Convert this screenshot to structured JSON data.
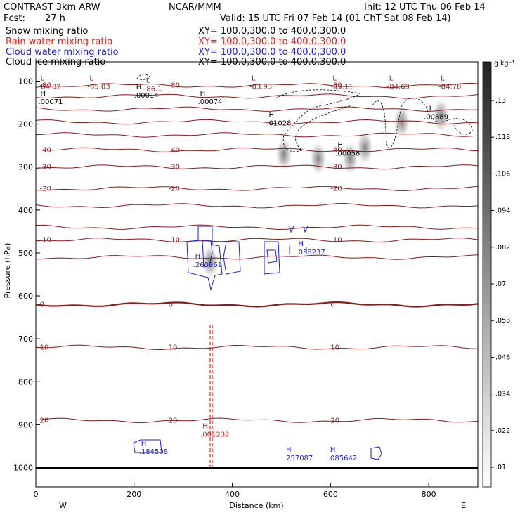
{
  "header": {
    "model": "CONTRAST  3km ARW",
    "center": "NCAR/MMM",
    "init": "Init: 12 UTC Thu 06 Feb 14",
    "fcst_label": "Fcst:",
    "fcst_value": "27 h",
    "valid": "Valid: 15 UTC Fri 07 Feb 14 (01 ChT Sat 08 Feb 14)"
  },
  "fields": [
    {
      "name": "Snow mixing ratio",
      "xy": "XY= 100.0,300.0 to 400.0,300.0",
      "color": "#000000"
    },
    {
      "name": "Rain water mixing ratio",
      "xy": "XY= 100.0,300.0 to 400.0,300.0",
      "color": "#e0201c"
    },
    {
      "name": "Cloud water mixing ratio",
      "xy": "XY= 100.0,300.0 to 400.0,300.0",
      "color": "#1e1ee0"
    },
    {
      "name": "Cloud ice mixing ratio",
      "xy": "XY= 100.0,300.0 to 400.0,300.0",
      "color": "#000000"
    }
  ],
  "colors": {
    "temperature": "#8b1a1a",
    "rain": "#e0201c",
    "cloud_water": "#1e1ee0",
    "cloud_ice": "#000000"
  },
  "colorbar": {
    "unit": "g kg⁻¹",
    "labels": [
      ".13",
      ".118",
      ".106",
      ".094",
      ".082",
      ".07",
      ".058",
      ".046",
      ".034",
      ".022",
      ".01"
    ]
  },
  "chart_data": {
    "type": "contour-cross-section",
    "xlabel": "Distance (km)",
    "ylabel": "Pressure (hPa)",
    "x_ticks": [
      "0",
      "200",
      "400",
      "600",
      "800"
    ],
    "y_ticks": [
      "100",
      "200",
      "300",
      "400",
      "500",
      "600",
      "700",
      "800",
      "900",
      "1000"
    ],
    "xlim": [
      0,
      900
    ],
    "ylim": [
      1045,
      55
    ],
    "x_left_label": "W",
    "x_right_label": "E",
    "isotherms": [
      {
        "p": 620,
        "label": "0"
      },
      {
        "p": 510,
        "label": ""
      },
      {
        "p": 470,
        "label": "-10"
      },
      {
        "p": 720,
        "label": "10"
      },
      {
        "p": 890,
        "label": "20"
      },
      {
        "p": 440,
        "label": ""
      },
      {
        "p": 390,
        "label": ""
      },
      {
        "p": 350,
        "label": "-20"
      },
      {
        "p": 300,
        "label": "-30"
      },
      {
        "p": 260,
        "label": "-40"
      },
      {
        "p": 225,
        "label": ""
      },
      {
        "p": 195,
        "label": ""
      },
      {
        "p": 165,
        "label": ""
      },
      {
        "p": 135,
        "label": ""
      },
      {
        "p": 110,
        "label": "-80"
      }
    ],
    "extrema_labels": [
      {
        "type": "L",
        "value": "-84.82",
        "x": 5,
        "p": 105,
        "color": "#8b1a1a"
      },
      {
        "type": "L",
        "value": "-85.03",
        "x": 105,
        "p": 105,
        "color": "#8b1a1a"
      },
      {
        "type": "L",
        "value": "-86.1",
        "x": 220,
        "p": 110,
        "color": "#8b1a1a"
      },
      {
        "type": "L",
        "value": "-83.93",
        "x": 435,
        "p": 105,
        "color": "#8b1a1a"
      },
      {
        "type": "L",
        "value": "-85.11",
        "x": 600,
        "p": 105,
        "color": "#8b1a1a"
      },
      {
        "type": "L",
        "value": "-84.69",
        "x": 715,
        "p": 105,
        "color": "#8b1a1a"
      },
      {
        "type": "L",
        "value": "-84.78",
        "x": 820,
        "p": 105,
        "color": "#8b1a1a"
      },
      {
        "type": "H",
        "value": ".00071",
        "x": 5,
        "p": 140,
        "color": "#000000"
      },
      {
        "type": "H",
        "value": ".00014",
        "x": 200,
        "p": 125,
        "color": "#000000"
      },
      {
        "type": "H",
        "value": ".00074",
        "x": 330,
        "p": 140,
        "color": "#000000"
      },
      {
        "type": "H",
        "value": ".01028",
        "x": 470,
        "p": 190,
        "color": "#000000"
      },
      {
        "type": "H",
        "value": ".00058",
        "x": 610,
        "p": 260,
        "color": "#000000"
      },
      {
        "type": "H",
        "value": ".00889",
        "x": 790,
        "p": 175,
        "color": "#000000"
      },
      {
        "type": "H",
        "value": ".260961",
        "x": 320,
        "p": 520,
        "color": "#1e1ee0"
      },
      {
        "type": "H",
        "value": ".058237",
        "x": 530,
        "p": 490,
        "color": "#1e1ee0"
      },
      {
        "type": "H",
        "value": ".184508",
        "x": 210,
        "p": 955,
        "color": "#1e1ee0"
      },
      {
        "type": "H",
        "value": ".257087",
        "x": 505,
        "p": 970,
        "color": "#1e1ee0"
      },
      {
        "type": "H",
        "value": ".085642",
        "x": 595,
        "p": 970,
        "color": "#1e1ee0"
      },
      {
        "type": "H",
        "value": ".001232",
        "x": 335,
        "p": 915,
        "color": "#e0201c"
      }
    ],
    "snow_blobs": [
      {
        "x": 505,
        "p": 270
      },
      {
        "x": 575,
        "p": 280
      },
      {
        "x": 670,
        "p": 255
      },
      {
        "x": 745,
        "p": 195
      },
      {
        "x": 825,
        "p": 180
      },
      {
        "x": 640,
        "p": 280
      },
      {
        "x": 355,
        "p": 520
      }
    ]
  }
}
